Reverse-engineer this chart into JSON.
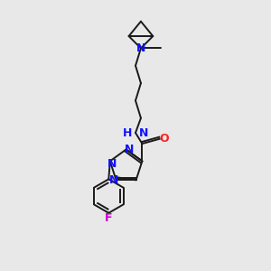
{
  "background_color": "#e8e8e8",
  "bond_color": "#1a1a1a",
  "nitrogen_color": "#1010ff",
  "oxygen_color": "#ff2020",
  "fluorine_color": "#cc00cc",
  "hn_color": "#1010ff",
  "figsize": [
    3.0,
    3.0
  ],
  "dpi": 100,
  "xlim": [
    0.0,
    1.0
  ],
  "ylim": [
    0.0,
    1.0
  ]
}
